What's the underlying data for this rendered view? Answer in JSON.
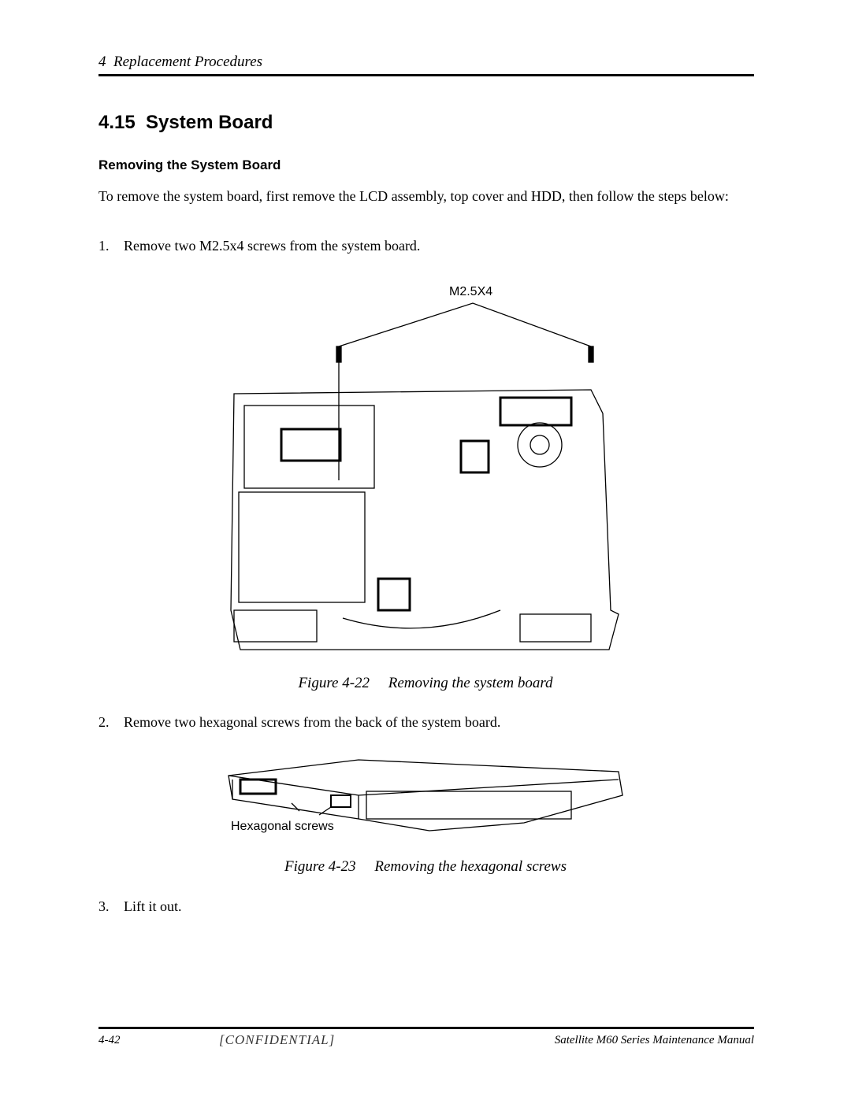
{
  "header": {
    "chapter": "4  Replacement Procedures"
  },
  "section": {
    "title": "4.15  System Board",
    "subtitle": "Removing the System Board"
  },
  "intro": "To remove the system board, first remove the LCD assembly, top cover and HDD, then follow the steps below:",
  "steps": [
    {
      "number": "1.",
      "text": "Remove two M2.5x4 screws from the system board."
    },
    {
      "number": "2.",
      "text": "Remove two hexagonal screws from the back of the system board."
    },
    {
      "number": "3.",
      "text": "Lift it out."
    }
  ],
  "figures": [
    {
      "label": "M2.5X4",
      "caption": "Figure 4-22     Removing the system board"
    },
    {
      "label": "Hexagonal screws",
      "caption": "Figure 4-23     Removing the hexagonal screws"
    }
  ],
  "footer": {
    "page": "4-42",
    "confidential": "[CONFIDENTIAL]",
    "manual": "Satellite M60 Series Maintenance Manual"
  }
}
